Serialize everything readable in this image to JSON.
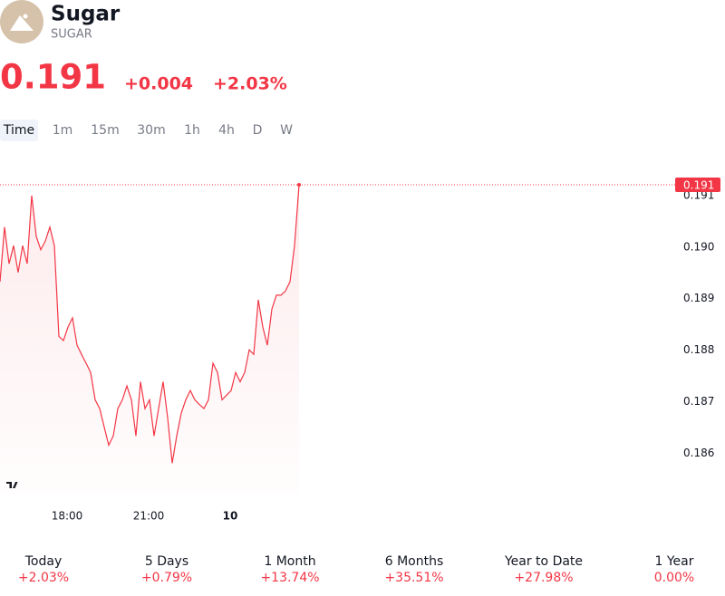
{
  "header": {
    "name": "Sugar",
    "symbol": "SUGAR",
    "price": "0.191",
    "change": "+0.004",
    "change_percent": "+2.03%"
  },
  "timeframes": [
    "Time",
    "1m",
    "15m",
    "30m",
    "1h",
    "4h",
    "D",
    "W"
  ],
  "chart_data": {
    "type": "line",
    "color": "#f23645",
    "categories": [
      null,
      null,
      null,
      null,
      null,
      null,
      null,
      null,
      null,
      null,
      null,
      null,
      null,
      null,
      null,
      "18:00",
      null,
      null,
      null,
      null,
      null,
      null,
      null,
      null,
      null,
      null,
      null,
      null,
      null,
      null,
      null,
      null,
      null,
      "21:00",
      null,
      null,
      null,
      null,
      null,
      null,
      null,
      null,
      null,
      null,
      null,
      null,
      null,
      null,
      null,
      null,
      null,
      "10",
      null,
      null,
      null,
      null,
      null,
      null,
      null,
      null,
      null,
      null,
      null,
      null,
      null,
      null,
      null
    ],
    "values": [
      0.18931,
      0.19037,
      0.18966,
      0.19001,
      0.18949,
      0.19001,
      0.18966,
      0.19098,
      0.19019,
      0.18993,
      0.1901,
      0.19037,
      0.19001,
      0.18825,
      0.18817,
      0.18843,
      0.18861,
      0.18808,
      0.1879,
      0.18773,
      0.18755,
      0.18702,
      0.18685,
      0.18649,
      0.18614,
      0.18632,
      0.18685,
      0.18702,
      0.18729,
      0.18702,
      0.18632,
      0.18737,
      0.18685,
      0.18702,
      0.18632,
      0.18685,
      0.18737,
      0.18667,
      0.18579,
      0.18632,
      0.18676,
      0.18702,
      0.1872,
      0.18702,
      0.18693,
      0.18685,
      0.18702,
      0.18773,
      0.18755,
      0.18702,
      0.18711,
      0.1872,
      0.18755,
      0.18737,
      0.18755,
      0.18799,
      0.1879,
      0.18896,
      0.18843,
      0.18808,
      0.18878,
      0.18905,
      0.18905,
      0.18913,
      0.18931,
      0.19001,
      0.19119
    ],
    "ylim": [
      0.1852,
      0.1917
    ],
    "yticks": [
      0.186,
      0.187,
      0.188,
      0.189,
      0.19,
      {
        "value": 0.19,
        "label": "0.190"
      },
      0.191
    ]
  },
  "performance": [
    {
      "label": "Today",
      "value": "+2.03%"
    },
    {
      "label": "5 Days",
      "value": "+0.79%"
    },
    {
      "label": "1 Month",
      "value": "+13.74%"
    },
    {
      "label": "6 Months",
      "value": "+35.51%"
    },
    {
      "label": "Year to Date",
      "value": "+27.98%"
    },
    {
      "label": "1 Year",
      "value": "0.00%"
    }
  ]
}
